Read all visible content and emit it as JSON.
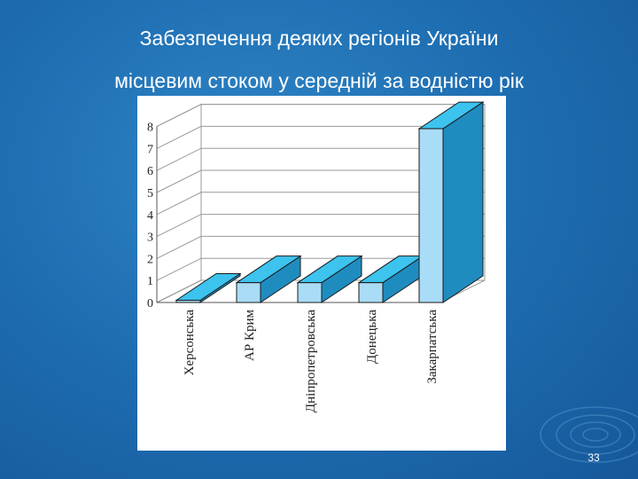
{
  "slide": {
    "title_line1": "Забезпечення деяких регіонів України",
    "title_line2": "місцевим стоком у середній за водністю рік",
    "page_number": "33"
  },
  "colors": {
    "background": "#1f6fb3",
    "bar_front": "#a9dcf6",
    "bar_top": "#3cc3ee",
    "bar_side": "#1f8cc0",
    "outline": "#1a1a1a"
  },
  "chart_data": {
    "type": "bar",
    "style": "3d",
    "title": "",
    "xlabel": "",
    "ylabel": "",
    "categories": [
      "Херсонська",
      "АР Крим",
      "Дніпропетровська",
      "Донецька",
      "Закарпатська"
    ],
    "values": [
      0.1,
      0.9,
      0.9,
      0.9,
      7.9
    ],
    "ylim": [
      0,
      8
    ],
    "yticks": [
      "0",
      "1",
      "2",
      "3",
      "4",
      "5",
      "6",
      "7",
      "8"
    ],
    "grid": true,
    "legend": "none"
  }
}
